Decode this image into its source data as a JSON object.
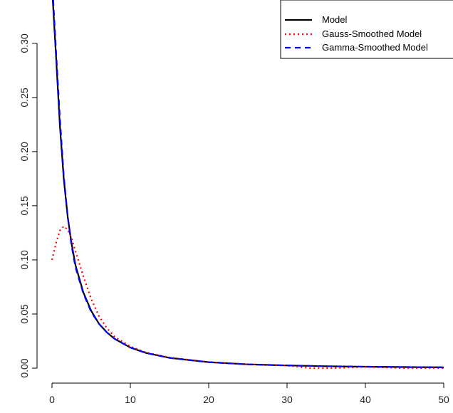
{
  "chart_data": {
    "type": "line",
    "title": "",
    "xlabel": "",
    "ylabel": "",
    "xlim": [
      0,
      50
    ],
    "ylim": [
      0,
      0.34
    ],
    "x_ticks": [
      0,
      10,
      20,
      30,
      40,
      50
    ],
    "x_tick_labels": [
      "0",
      "10",
      "20",
      "30",
      "40",
      "50"
    ],
    "y_ticks": [
      0,
      0.05,
      0.1,
      0.15,
      0.2,
      0.25,
      0.3
    ],
    "y_tick_labels": [
      "0.00",
      "0.05",
      "0.10",
      "0.15",
      "0.20",
      "0.25",
      "0.30"
    ],
    "legend_position": "top-right",
    "grid": false,
    "series": [
      {
        "name": "Model",
        "color": "#000000",
        "style": "solid",
        "points": [
          [
            0.1,
            0.34
          ],
          [
            0.5,
            0.29
          ],
          [
            1,
            0.225
          ],
          [
            1.5,
            0.175
          ],
          [
            2,
            0.14
          ],
          [
            2.5,
            0.115
          ],
          [
            3,
            0.095
          ],
          [
            4,
            0.07
          ],
          [
            5,
            0.053
          ],
          [
            6,
            0.041
          ],
          [
            7,
            0.033
          ],
          [
            8,
            0.027
          ],
          [
            10,
            0.019
          ],
          [
            12,
            0.014
          ],
          [
            15,
            0.0095
          ],
          [
            20,
            0.0055
          ],
          [
            25,
            0.0035
          ],
          [
            30,
            0.0025
          ],
          [
            35,
            0.0018
          ],
          [
            40,
            0.0013
          ],
          [
            45,
            0.001
          ],
          [
            50,
            0.0008
          ]
        ]
      },
      {
        "name": "Gauss-Smoothed Model",
        "color": "#ff0000",
        "style": "dotted",
        "points": [
          [
            0,
            0.1
          ],
          [
            0.5,
            0.115
          ],
          [
            1,
            0.127
          ],
          [
            1.5,
            0.131
          ],
          [
            2,
            0.128
          ],
          [
            2.5,
            0.12
          ],
          [
            3,
            0.108
          ],
          [
            4,
            0.085
          ],
          [
            5,
            0.064
          ],
          [
            6,
            0.048
          ],
          [
            7,
            0.037
          ],
          [
            8,
            0.029
          ],
          [
            10,
            0.02
          ],
          [
            12,
            0.0145
          ],
          [
            15,
            0.0098
          ],
          [
            20,
            0.0056
          ],
          [
            25,
            0.0035
          ],
          [
            30,
            0.0024
          ],
          [
            33,
            0.0
          ],
          [
            36,
            0.0
          ],
          [
            40,
            0.0012
          ],
          [
            45,
            0.0
          ],
          [
            50,
            0.0
          ]
        ]
      },
      {
        "name": "Gamma-Smoothed Model",
        "color": "#0000ff",
        "style": "dashed",
        "points": [
          [
            0.15,
            0.34
          ],
          [
            0.5,
            0.295
          ],
          [
            1,
            0.232
          ],
          [
            1.5,
            0.178
          ],
          [
            2,
            0.14
          ],
          [
            2.5,
            0.113
          ],
          [
            3,
            0.093
          ],
          [
            4,
            0.069
          ],
          [
            5,
            0.052
          ],
          [
            6,
            0.041
          ],
          [
            7,
            0.033
          ],
          [
            8,
            0.027
          ],
          [
            10,
            0.019
          ],
          [
            12,
            0.014
          ],
          [
            15,
            0.0095
          ],
          [
            20,
            0.0055
          ],
          [
            25,
            0.0035
          ],
          [
            30,
            0.0025
          ],
          [
            35,
            0.0018
          ],
          [
            40,
            0.0013
          ],
          [
            45,
            0.001
          ],
          [
            50,
            0.0008
          ]
        ]
      }
    ]
  }
}
